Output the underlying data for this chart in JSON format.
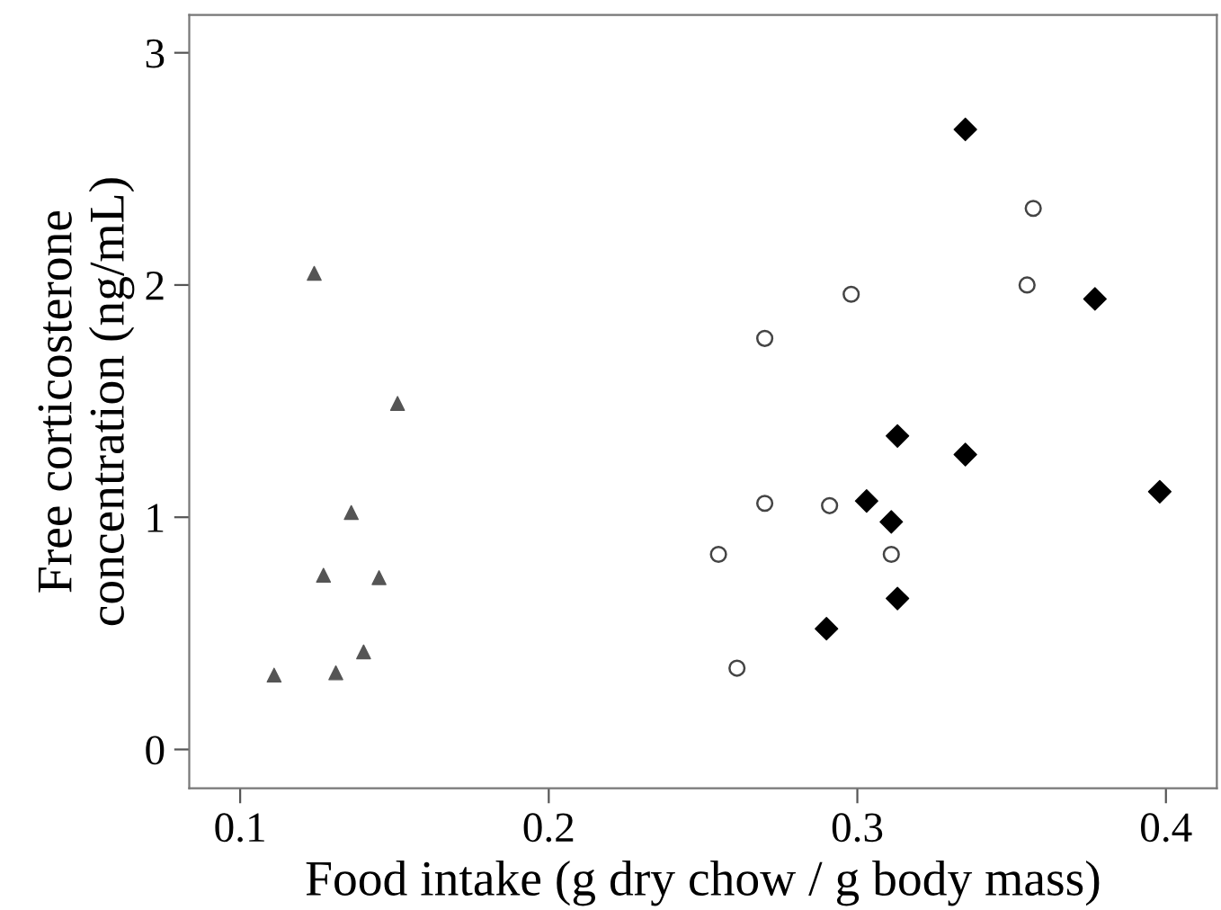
{
  "chart_data": {
    "type": "scatter",
    "xlabel": "Food intake (g dry chow / g body mass)",
    "ylabel": "Free corticosterone\nconcentration (ng/mL)",
    "xlim": [
      0.0835,
      0.4165
    ],
    "ylim": [
      -0.167,
      3.163
    ],
    "xticks": [
      0.1,
      0.2,
      0.3,
      0.4
    ],
    "yticks": [
      0,
      1,
      2,
      3
    ],
    "grid": false,
    "legend": false,
    "series": [
      {
        "marker": "triangle",
        "color": "#555555",
        "x": [
          0.124,
          0.151,
          0.136,
          0.127,
          0.145,
          0.14,
          0.111,
          0.131
        ],
        "values": [
          2.05,
          1.49,
          1.02,
          0.75,
          0.74,
          0.42,
          0.32,
          0.33
        ]
      },
      {
        "marker": "circle",
        "color": "#ffffff",
        "x": [
          0.357,
          0.355,
          0.298,
          0.27,
          0.27,
          0.291,
          0.255,
          0.311,
          0.261
        ],
        "values": [
          2.33,
          2.0,
          1.96,
          1.77,
          1.06,
          1.05,
          0.84,
          0.84,
          0.35
        ]
      },
      {
        "marker": "diamond",
        "color": "#000000",
        "x": [
          0.335,
          0.377,
          0.313,
          0.335,
          0.398,
          0.303,
          0.311,
          0.313,
          0.29
        ],
        "values": [
          2.67,
          1.94,
          1.35,
          1.27,
          1.11,
          1.07,
          0.98,
          0.65,
          0.52
        ]
      }
    ]
  }
}
